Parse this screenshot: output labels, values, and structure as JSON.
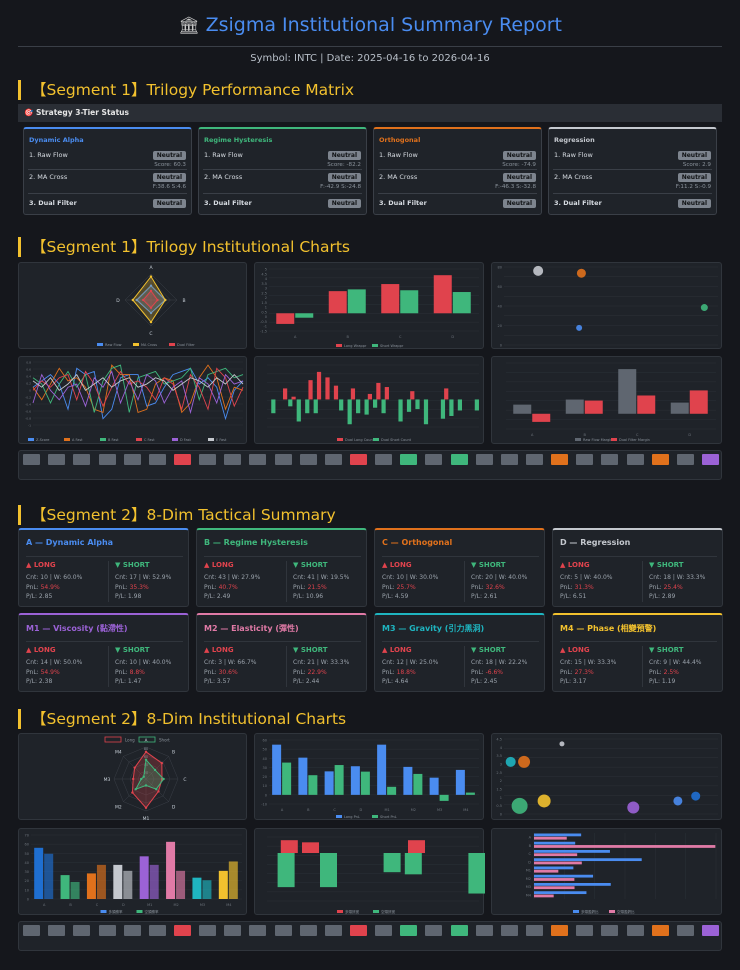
{
  "header": {
    "icon": "bank-icon",
    "title": "Zsigma Institutional Summary Report",
    "subtitle": "Symbol: INTC | Date: 2025-04-16 to 2026-04-16"
  },
  "seg1_matrix": {
    "heading": "【Segment 1】Trilogy Performance Matrix",
    "bar_title": "🎯 Strategy 3-Tier Status",
    "row_labels": [
      "1. Raw Flow",
      "2. MA Cross",
      "3. Dual Filter"
    ],
    "badge": "Neutral",
    "cards": [
      {
        "name": "Dynamic Alpha",
        "accent": "#4a8cf0",
        "score": "Score: 60.3",
        "ma": "F:38.6 S:4.6"
      },
      {
        "name": "Regime Hysteresis",
        "accent": "#3fb77c",
        "score": "Score: -82.2",
        "ma": "F:-42.9 S:-24.8"
      },
      {
        "name": "Orthogonal",
        "accent": "#e0711c",
        "score": "Score: -74.9",
        "ma": "F:-46.3 S:-32.8"
      },
      {
        "name": "Regression",
        "accent": "#c4c8ce",
        "score": "Score: 2.9",
        "ma": "F:11.2 S:-0.9"
      }
    ]
  },
  "seg1_charts": {
    "heading": "【Segment 1】Trilogy Institutional Charts"
  },
  "seg2_summary": {
    "heading": "【Segment 2】8-Dim Tactical Summary",
    "long_label": "▲ LONG",
    "short_label": "▼ SHORT",
    "cards": [
      {
        "name": "A — Dynamic Alpha",
        "accent": "#4a8cf0",
        "long": {
          "cnt": "Cnt: 10 | W: 60.0%",
          "pnl": "54.9%",
          "pl": "P/L: 2.85"
        },
        "short": {
          "cnt": "Cnt: 17 | W: 52.9%",
          "pnl": "35.3%",
          "pl": "P/L: 1.98"
        }
      },
      {
        "name": "B — Regime Hysteresis",
        "accent": "#3fb77c",
        "long": {
          "cnt": "Cnt: 43 | W: 27.9%",
          "pnl": "40.7%",
          "pl": "P/L: 2.49"
        },
        "short": {
          "cnt": "Cnt: 41 | W: 19.5%",
          "pnl": "21.5%",
          "pl": "P/L: 10.96"
        }
      },
      {
        "name": "C — Orthogonal",
        "accent": "#e0711c",
        "long": {
          "cnt": "Cnt: 10 | W: 30.0%",
          "pnl": "25.7%",
          "pl": "P/L: 4.59"
        },
        "short": {
          "cnt": "Cnt: 20 | W: 40.0%",
          "pnl": "32.6%",
          "pl": "P/L: 2.61"
        }
      },
      {
        "name": "D — Regression",
        "accent": "#c4c8ce",
        "long": {
          "cnt": "Cnt: 5 | W: 40.0%",
          "pnl": "31.3%",
          "pl": "P/L: 6.51"
        },
        "short": {
          "cnt": "Cnt: 18 | W: 33.3%",
          "pnl": "25.4%",
          "pl": "P/L: 2.89"
        }
      },
      {
        "name": "M1 — Viscosity (黏滯性)",
        "accent": "#9b62d6",
        "long": {
          "cnt": "Cnt: 14 | W: 50.0%",
          "pnl": "54.9%",
          "pl": "P/L: 2.38"
        },
        "short": {
          "cnt": "Cnt: 10 | W: 40.0%",
          "pnl": "8.8%",
          "pl": "P/L: 1.47"
        }
      },
      {
        "name": "M2 — Elasticity (彈性)",
        "accent": "#e07aa6",
        "long": {
          "cnt": "Cnt: 3 | W: 66.7%",
          "pnl": "30.6%",
          "pl": "P/L: 3.57"
        },
        "short": {
          "cnt": "Cnt: 21 | W: 33.3%",
          "pnl": "22.9%",
          "pl": "P/L: 2.44"
        }
      },
      {
        "name": "M3 — Gravity (引力黑洞)",
        "accent": "#1fb5c0",
        "long": {
          "cnt": "Cnt: 12 | W: 25.0%",
          "pnl": "18.8%",
          "pl": "P/L: 4.64"
        },
        "short": {
          "cnt": "Cnt: 18 | W: 22.2%",
          "pnl": "-6.6%",
          "pl": "P/L: 2.45"
        }
      },
      {
        "name": "M4 — Phase (相變預警)",
        "accent": "#f2c12e",
        "long": {
          "cnt": "Cnt: 15 | W: 33.3%",
          "pnl": "27.3%",
          "pl": "P/L: 3.17"
        },
        "short": {
          "cnt": "Cnt: 9 | W: 44.4%",
          "pnl": "2.5%",
          "pl": "P/L: 1.19"
        }
      }
    ]
  },
  "seg2_charts": {
    "heading": "【Segment 2】8-Dim Institutional Charts"
  },
  "chart_data": [
    {
      "id": "s1_radar",
      "type": "radar",
      "axes": [
        "A",
        "B",
        "C",
        "D"
      ],
      "series": [
        {
          "name": "Raw Flow",
          "color": "#4a8cf0",
          "values": [
            0.55,
            0.55,
            0.5,
            0.55
          ]
        },
        {
          "name": "MA Cross",
          "color": "#f2c12e",
          "values": [
            0.9,
            0.55,
            0.85,
            0.7
          ]
        },
        {
          "name": "Dual Filter",
          "color": "#e0434d",
          "values": [
            0.35,
            0.25,
            0.3,
            0.3
          ]
        }
      ],
      "legend": [
        "Raw Flow",
        "MA Cross",
        "Dual Filter"
      ]
    },
    {
      "id": "s1_bars",
      "type": "bar",
      "categories": [
        "A",
        "B",
        "C",
        "D"
      ],
      "series": [
        {
          "name": "Long Wrappr",
          "color": "#e0434d",
          "values": [
            -1.2,
            2.5,
            3.3,
            4.3
          ]
        },
        {
          "name": "Short Wrappr",
          "color": "#3fb77c",
          "values": [
            -0.5,
            2.7,
            2.6,
            2.4
          ]
        }
      ],
      "ylim": [
        -2,
        5
      ],
      "yticks": [
        "5",
        "4.5",
        "4",
        "3.5",
        "3",
        "2.5",
        "2",
        "1.5",
        "1",
        "0.5",
        "0",
        "-0.5",
        "-1",
        "-1.5"
      ]
    },
    {
      "id": "s1_scatter",
      "type": "scatter",
      "points": [
        {
          "x": 1.5,
          "y": 95,
          "r": 5,
          "color": "#c4c8ce"
        },
        {
          "x": 3.4,
          "y": 92,
          "r": 4.5,
          "color": "#e0711c"
        },
        {
          "x": 8.8,
          "y": 48,
          "r": 3.5,
          "color": "#3fb77c"
        },
        {
          "x": 3.3,
          "y": 22,
          "r": 3,
          "color": "#4a8cf0"
        }
      ],
      "yticks": [
        "80",
        "60",
        "40",
        "20",
        "0"
      ],
      "ylim": [
        0,
        100
      ],
      "xlim": [
        0,
        9.4
      ]
    },
    {
      "id": "s1_lines",
      "type": "line",
      "series": [
        {
          "name": "Z-Score",
          "color": "#4a8cf0",
          "values": [
            0.2,
            0.4,
            0.6,
            0.3,
            -0.5,
            0.8,
            0.6,
            0.7,
            -0.8,
            -0.5,
            0.5,
            0.6,
            0.6,
            -0.4,
            -0.3,
            0.2,
            0.6,
            0.7,
            0.8,
            0.3,
            0.5,
            0.2,
            -0.8,
            0.1,
            0.4
          ]
        },
        {
          "name": "A Fast",
          "color": "#e0711c",
          "values": [
            0.2,
            -0.2,
            0.3,
            0.8,
            0.4,
            0.5,
            0.2,
            -0.5,
            -0.6,
            0.9,
            0.6,
            0.6,
            -0.6,
            -0.5,
            0.3,
            0.5,
            0.4,
            -0.6,
            -0.3,
            0.5,
            0.9,
            0.5,
            -0.5,
            0.2,
            0.1
          ]
        },
        {
          "name": "B Fast",
          "color": "#3fb77c",
          "values": [
            0.5,
            0.3,
            -0.3,
            0.3,
            0.7,
            0.2,
            0.6,
            -0.6,
            0.4,
            0.8,
            0.9,
            -0.6,
            0.5,
            0.6,
            0.7,
            0.3,
            0.4,
            0.5,
            0.8,
            -0.2,
            0.6,
            0.7,
            0.8,
            0.5,
            0.6
          ]
        },
        {
          "name": "C Fast",
          "color": "#e0434d",
          "values": [
            0.1,
            0.4,
            0.2,
            0.5,
            0.6,
            -0.2,
            0.7,
            0.3,
            -0.4,
            0.2,
            0.7,
            0.3,
            0.4,
            0.2,
            -0.2,
            0.5,
            0.3,
            -0.5,
            0.6,
            0.2,
            -0.5,
            0.8,
            0.5,
            -0.4,
            0.2
          ]
        },
        {
          "name": "D Fast",
          "color": "#9b62d6",
          "values": [
            -0.3,
            0.6,
            0.1,
            -0.2,
            0.2,
            0.3,
            -0.4,
            0.5,
            0.2,
            0.7,
            -0.3,
            0.4,
            -0.2,
            0.6,
            0.4,
            -0.3,
            0.2,
            0.4,
            -0.6,
            0.5,
            0.3,
            -0.3,
            0.6,
            0.3,
            0.4
          ]
        },
        {
          "name": "E Fast",
          "color": "#c4c8ce",
          "values": [
            0.4,
            0.2,
            0.5,
            0.1,
            0.3,
            0.6,
            0.1,
            0.3,
            0.5,
            0.2,
            0.4,
            0.5,
            0.2,
            0.3,
            0.5,
            0.4,
            0.1,
            0.3,
            0.5,
            0.4,
            0.2,
            0.5,
            0.3,
            0.6,
            0.3
          ]
        }
      ],
      "legend": [
        "Z-Score",
        "A Fast",
        "B Fast",
        "C Fast",
        "D Fast",
        "E Fast"
      ],
      "yticks": [
        "0.8",
        "0.6",
        "0.4",
        "0.2",
        "0",
        "-0.2",
        "-0.4",
        "-0.6",
        "-0.8",
        "-1"
      ],
      "ylim": [
        -1,
        1
      ]
    },
    {
      "id": "s1_diverge",
      "type": "bar",
      "series": [
        {
          "name": "Dual Long Count",
          "color": "#e0434d",
          "values": [
            0,
            0,
            0.8,
            0.2,
            0,
            1.4,
            2.0,
            1.6,
            1.0,
            0,
            0.8,
            0,
            0.4,
            1.2,
            0.9,
            0,
            0,
            0.6,
            0,
            0,
            0,
            0.8,
            0,
            0,
            0
          ]
        },
        {
          "name": "Dual Short Count",
          "color": "#3fb77c",
          "values": [
            -1.0,
            0,
            -0.5,
            -1.6,
            -1.0,
            -1.0,
            0,
            0,
            -0.8,
            -1.8,
            -1.0,
            -1.1,
            -0.6,
            -1.0,
            0,
            -1.6,
            -0.9,
            -0.7,
            -1.8,
            0,
            -1.4,
            -1.2,
            -0.8,
            0,
            -0.8
          ]
        }
      ],
      "ylim": [
        -2,
        2.5
      ],
      "legend": [
        "Dual Long Count",
        "Dual Short Count"
      ]
    },
    {
      "id": "s1_grouped",
      "type": "bar",
      "categories": [
        "A",
        "B",
        "C",
        "D"
      ],
      "series": [
        {
          "name": "Raw Flow Margin",
          "color": "#5f6670",
          "values": [
            0.9,
            1.4,
            4.4,
            1.1
          ]
        },
        {
          "name": "Dual Filter Margin",
          "color": "#e0434d",
          "values": [
            -0.8,
            1.3,
            1.8,
            2.3
          ]
        }
      ],
      "ylim": [
        -1.5,
        5
      ],
      "legend": [
        "Raw Flow Margin",
        "Dual Filter Margin"
      ]
    },
    {
      "id": "s2_radar",
      "type": "radar",
      "axes": [
        "A",
        "B",
        "C",
        "D",
        "M1",
        "M2",
        "M3",
        "M4"
      ],
      "series": [
        {
          "name": "Long",
          "color": "#e0434d",
          "values": [
            0.85,
            0.7,
            0.5,
            0.55,
            0.9,
            0.6,
            0.4,
            0.5
          ]
        },
        {
          "name": "Short",
          "color": "#3fb77c",
          "values": [
            0.6,
            0.4,
            0.55,
            0.45,
            0.2,
            0.45,
            0.15,
            0.1
          ]
        }
      ],
      "legend": [
        "Long",
        "Short"
      ],
      "rings": [
        "80",
        "60",
        "40",
        "20"
      ]
    },
    {
      "id": "s2_pnl",
      "type": "bar",
      "categories": [
        "A",
        "B",
        "C",
        "D",
        "M1",
        "M2",
        "M3",
        "M4"
      ],
      "series": [
        {
          "name": "Long PnL",
          "color": "#4a8cf0",
          "values": [
            54.9,
            40.7,
            25.7,
            31.3,
            54.9,
            30.6,
            18.8,
            27.3
          ]
        },
        {
          "name": "Short PnL",
          "color": "#3fb77c",
          "values": [
            35.3,
            21.5,
            32.6,
            25.4,
            8.8,
            22.9,
            -6.6,
            2.5
          ]
        }
      ],
      "ylim": [
        -10,
        60
      ],
      "yticks": [
        "60",
        "50",
        "40",
        "30",
        "20",
        "10",
        "0",
        "-10"
      ]
    },
    {
      "id": "s2_bubble",
      "type": "scatter",
      "points": [
        {
          "x": 0.15,
          "y": 3.2,
          "r": 5,
          "color": "#1fb5c0"
        },
        {
          "x": 0.45,
          "y": 3.2,
          "r": 6,
          "color": "#e0711c"
        },
        {
          "x": 1.3,
          "y": 4.3,
          "r": 2.5,
          "color": "#c4c8ce"
        },
        {
          "x": 0.35,
          "y": 0.5,
          "r": 8,
          "color": "#3fb77c"
        },
        {
          "x": 0.9,
          "y": 0.8,
          "r": 6.5,
          "color": "#f2c12e"
        },
        {
          "x": 2.9,
          "y": 0.4,
          "r": 6,
          "color": "#9b62d6"
        },
        {
          "x": 3.9,
          "y": 0.8,
          "r": 4.5,
          "color": "#4a8cf0"
        },
        {
          "x": 4.3,
          "y": 1.1,
          "r": 4.5,
          "color": "#1f6fd1"
        }
      ],
      "xlim": [
        0,
        4.8
      ],
      "ylim": [
        0,
        4.6
      ],
      "yticks": [
        "4.5",
        "4",
        "3.5",
        "3",
        "2.5",
        "2",
        "1.5",
        "1",
        "0.5",
        "0"
      ]
    },
    {
      "id": "s2_winrate",
      "type": "bar",
      "categories": [
        "A",
        "B",
        "C",
        "D",
        "M1",
        "M2",
        "M3",
        "M4"
      ],
      "series": [
        {
          "name": "多頭勝率",
          "color": "#4a8cf0",
          "values": [
            60,
            28,
            30,
            40,
            50,
            67,
            25,
            33
          ]
        },
        {
          "name": "空頭勝率",
          "color": "#3fb77c",
          "values": [
            53,
            20,
            40,
            33,
            40,
            33,
            22,
            44
          ]
        }
      ],
      "colors": [
        "#1f6fd1",
        "#3fb77c",
        "#e0711c",
        "#c4c8ce",
        "#9b62d6",
        "#e07aa6",
        "#1fb5c0",
        "#f2c12e"
      ],
      "ylim": [
        0,
        75
      ],
      "yticks": [
        "70",
        "60",
        "50",
        "40",
        "30",
        "20",
        "10",
        "0"
      ],
      "legend": [
        "多頭勝率",
        "空頭勝率"
      ]
    },
    {
      "id": "s2_signal",
      "type": "bar",
      "series": [
        {
          "name": "多頭訊號",
          "color": "#e0434d",
          "values": [
            0,
            1.2,
            1.0,
            0,
            0,
            0,
            0,
            1.2,
            0,
            0
          ]
        },
        {
          "name": "空頭訊號",
          "color": "#3fb77c",
          "values": [
            -3.2,
            0,
            -3.2,
            0,
            0,
            -1.8,
            -2.0,
            0,
            0,
            -3.8
          ]
        }
      ],
      "ylim": [
        -4.5,
        1.5
      ],
      "legend": [
        "多頭訊號",
        "空頭訊號"
      ]
    },
    {
      "id": "s2_hbar",
      "type": "bar",
      "orientation": "horizontal",
      "categories": [
        "A",
        "B",
        "C",
        "D",
        "M1",
        "M2",
        "M3",
        "M4"
      ],
      "series": [
        {
          "name": "多頭盈虧比",
          "color": "#4a8cf0",
          "values": [
            2.85,
            2.49,
            4.59,
            6.51,
            2.38,
            3.57,
            4.64,
            3.17
          ]
        },
        {
          "name": "空頭盈虧比",
          "color": "#e07aa6",
          "values": [
            1.98,
            10.96,
            2.61,
            2.89,
            1.47,
            2.44,
            2.45,
            1.19
          ]
        }
      ],
      "legend": [
        "多頭盈虧比",
        "空頭盈虧比"
      ]
    },
    {
      "id": "strips",
      "type": "heatmap",
      "strip1": [
        "#5f6670",
        "#5f6670",
        "#5f6670",
        "#5f6670",
        "#5f6670",
        "#5f6670",
        "#e0434d",
        "#5f6670",
        "#5f6670",
        "#5f6670",
        "#5f6670",
        "#5f6670",
        "#5f6670",
        "#e0434d",
        "#5f6670",
        "#3fb77c",
        "#5f6670",
        "#3fb77c",
        "#5f6670",
        "#5f6670",
        "#5f6670",
        "#e0711c",
        "#5f6670",
        "#5f6670",
        "#5f6670",
        "#e0711c",
        "#5f6670",
        "#9b62d6"
      ],
      "strip2": [
        "#5f6670",
        "#5f6670",
        "#5f6670",
        "#5f6670",
        "#5f6670",
        "#5f6670",
        "#e0434d",
        "#5f6670",
        "#5f6670",
        "#5f6670",
        "#5f6670",
        "#5f6670",
        "#5f6670",
        "#e0434d",
        "#5f6670",
        "#3fb77c",
        "#5f6670",
        "#3fb77c",
        "#5f6670",
        "#5f6670",
        "#5f6670",
        "#e0711c",
        "#5f6670",
        "#5f6670",
        "#5f6670",
        "#e0711c",
        "#5f6670",
        "#9b62d6"
      ]
    }
  ]
}
